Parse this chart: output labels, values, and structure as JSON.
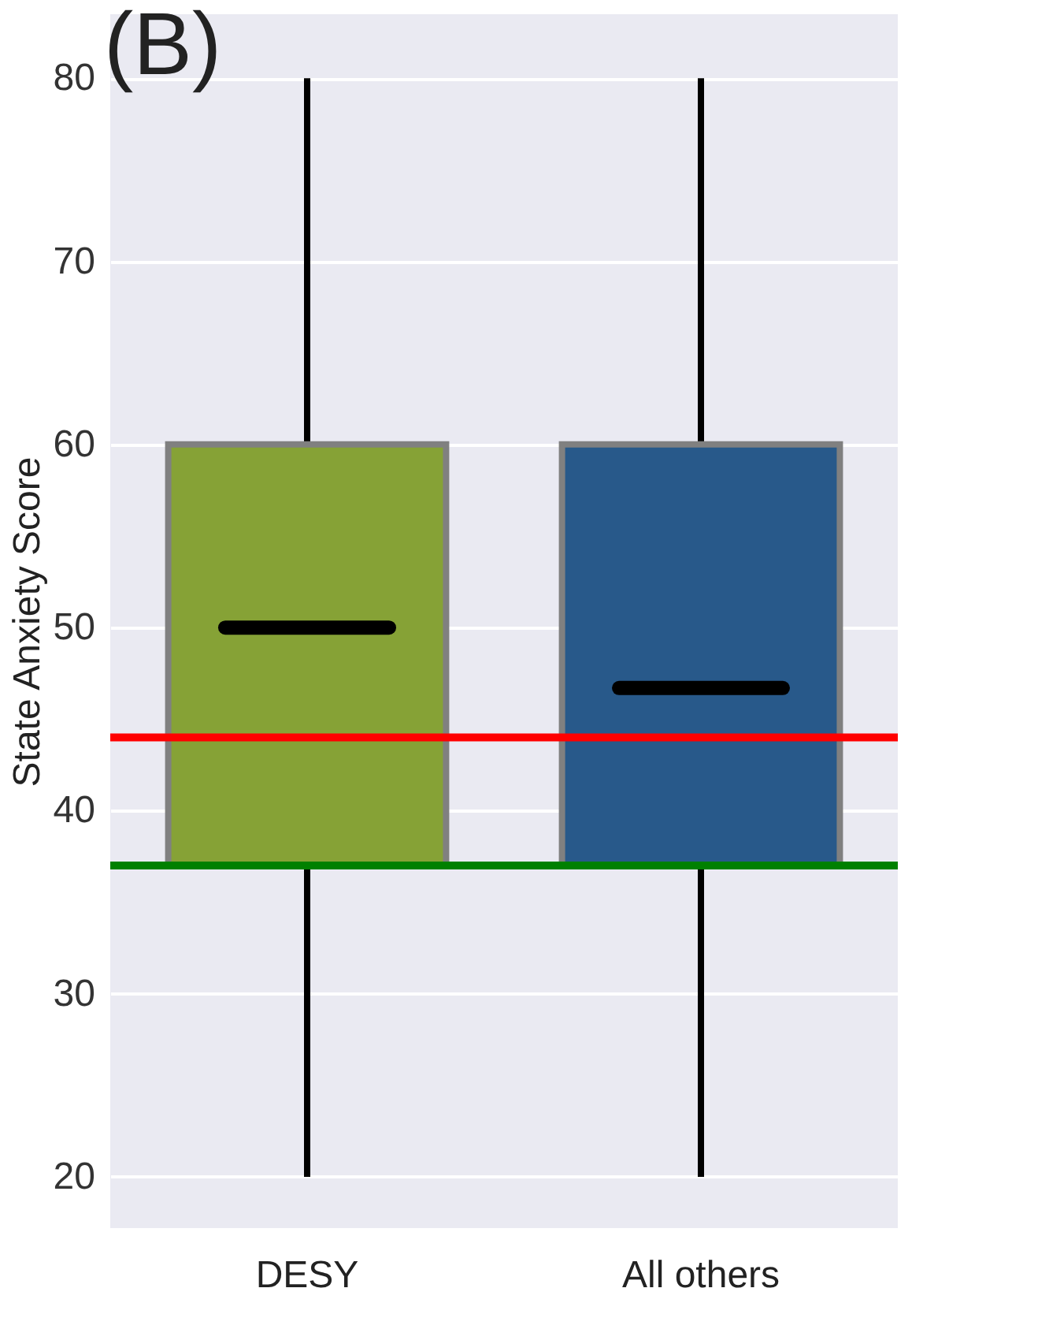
{
  "chart_data": {
    "type": "box",
    "ylabel": "State Anxiety Score",
    "categories": [
      "DESY",
      "All others"
    ],
    "boxes": [
      {
        "low": 20,
        "q1": 37,
        "median": 50,
        "q3": 60,
        "high": 80
      },
      {
        "low": 20,
        "q1": 37,
        "median": 46.7,
        "q3": 60,
        "high": 80
      }
    ],
    "colors": [
      "#86a236",
      "#28598a"
    ],
    "ylim": [
      17.2,
      83.5
    ],
    "yticks": [
      20,
      30,
      40,
      50,
      60,
      70,
      80
    ],
    "grid": "y",
    "ref_lines": [
      {
        "axis": "y",
        "value": 44,
        "color": "#ff0000"
      },
      {
        "axis": "y",
        "value": 37,
        "color": "#008000"
      }
    ],
    "annotations": [
      "(B)"
    ]
  }
}
